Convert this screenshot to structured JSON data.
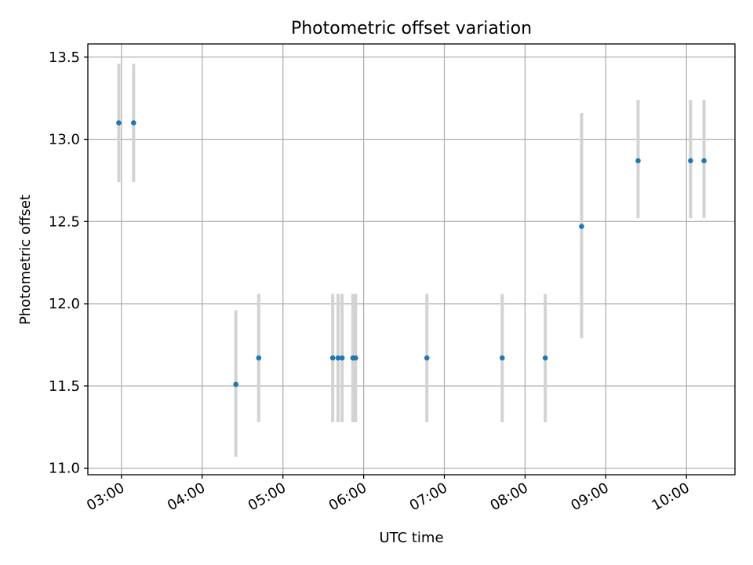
{
  "chart_data": {
    "type": "scatter",
    "title": "Photometric offset variation",
    "xlabel": "UTC time",
    "ylabel": "Photometric offset",
    "xlim": [
      "02:35",
      "10:36"
    ],
    "ylim": [
      10.96,
      13.58
    ],
    "x_ticks": [
      "03:00",
      "04:00",
      "05:00",
      "06:00",
      "07:00",
      "08:00",
      "09:00",
      "10:00"
    ],
    "y_ticks": [
      "11.0",
      "11.5",
      "12.0",
      "12.5",
      "13.0",
      "13.5"
    ],
    "grid": true,
    "colors": {
      "point": "#1f77b4",
      "errorbar": "#d3d3d3",
      "grid": "#b0b0b0"
    },
    "points": [
      {
        "x": "02:58",
        "y": 13.1,
        "ylow": 12.74,
        "yhigh": 13.46
      },
      {
        "x": "03:09",
        "y": 13.1,
        "ylow": 12.74,
        "yhigh": 13.46
      },
      {
        "x": "04:25",
        "y": 11.51,
        "ylow": 11.07,
        "yhigh": 11.96
      },
      {
        "x": "04:42",
        "y": 11.67,
        "ylow": 11.28,
        "yhigh": 12.06
      },
      {
        "x": "05:37",
        "y": 11.67,
        "ylow": 11.28,
        "yhigh": 12.06
      },
      {
        "x": "05:41",
        "y": 11.67,
        "ylow": 11.28,
        "yhigh": 12.06
      },
      {
        "x": "05:44",
        "y": 11.67,
        "ylow": 11.28,
        "yhigh": 12.06
      },
      {
        "x": "05:52",
        "y": 11.67,
        "ylow": 11.28,
        "yhigh": 12.06
      },
      {
        "x": "05:54",
        "y": 11.67,
        "ylow": 11.28,
        "yhigh": 12.06
      },
      {
        "x": "06:47",
        "y": 11.67,
        "ylow": 11.28,
        "yhigh": 12.06
      },
      {
        "x": "07:43",
        "y": 11.67,
        "ylow": 11.28,
        "yhigh": 12.06
      },
      {
        "x": "08:15",
        "y": 11.67,
        "ylow": 11.28,
        "yhigh": 12.06
      },
      {
        "x": "08:42",
        "y": 12.47,
        "ylow": 11.79,
        "yhigh": 13.16
      },
      {
        "x": "09:24",
        "y": 12.87,
        "ylow": 12.52,
        "yhigh": 13.24
      },
      {
        "x": "10:03",
        "y": 12.87,
        "ylow": 12.52,
        "yhigh": 13.24
      },
      {
        "x": "10:13",
        "y": 12.87,
        "ylow": 12.52,
        "yhigh": 13.24
      }
    ]
  }
}
